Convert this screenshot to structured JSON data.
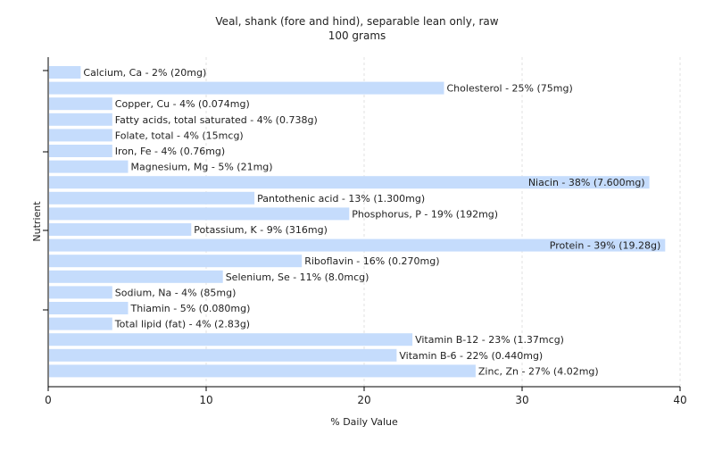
{
  "chart_data": {
    "type": "bar",
    "orientation": "horizontal",
    "title": "Veal, shank (fore and hind), separable lean only, raw",
    "subtitle": "100 grams",
    "xlabel": "% Daily Value",
    "ylabel": "Nutrient",
    "xlim": [
      0,
      40
    ],
    "xticks": [
      0,
      10,
      20,
      30,
      40
    ],
    "grid": "vertical",
    "bar_color": "#c5dcfc",
    "categories": [
      "Calcium, Ca",
      "Cholesterol",
      "Copper, Cu",
      "Fatty acids, total saturated",
      "Folate, total",
      "Iron, Fe",
      "Magnesium, Mg",
      "Niacin",
      "Pantothenic acid",
      "Phosphorus, P",
      "Potassium, K",
      "Protein",
      "Riboflavin",
      "Selenium, Se",
      "Sodium, Na",
      "Thiamin",
      "Total lipid (fat)",
      "Vitamin B-12",
      "Vitamin B-6",
      "Zinc, Zn"
    ],
    "values": [
      2,
      25,
      4,
      4,
      4,
      4,
      5,
      38,
      13,
      19,
      9,
      39,
      16,
      11,
      4,
      5,
      4,
      23,
      22,
      27
    ],
    "labels": [
      "Calcium, Ca - 2% (20mg)",
      "Cholesterol - 25% (75mg)",
      "Copper, Cu - 4% (0.074mg)",
      "Fatty acids, total saturated - 4% (0.738g)",
      "Folate, total - 4% (15mcg)",
      "Iron, Fe - 4% (0.76mg)",
      "Magnesium, Mg - 5% (21mg)",
      "Niacin - 38% (7.600mg)",
      "Pantothenic acid - 13% (1.300mg)",
      "Phosphorus, P - 19% (192mg)",
      "Potassium, K - 9% (316mg)",
      "Protein - 39% (19.28g)",
      "Riboflavin - 16% (0.270mg)",
      "Selenium, Se - 11% (8.0mcg)",
      "Sodium, Na - 4% (85mg)",
      "Thiamin - 5% (0.080mg)",
      "Total lipid (fat) - 4% (2.83g)",
      "Vitamin B-12 - 23% (1.37mcg)",
      "Vitamin B-6 - 22% (0.440mg)",
      "Zinc, Zn - 27% (4.02mg)"
    ]
  }
}
